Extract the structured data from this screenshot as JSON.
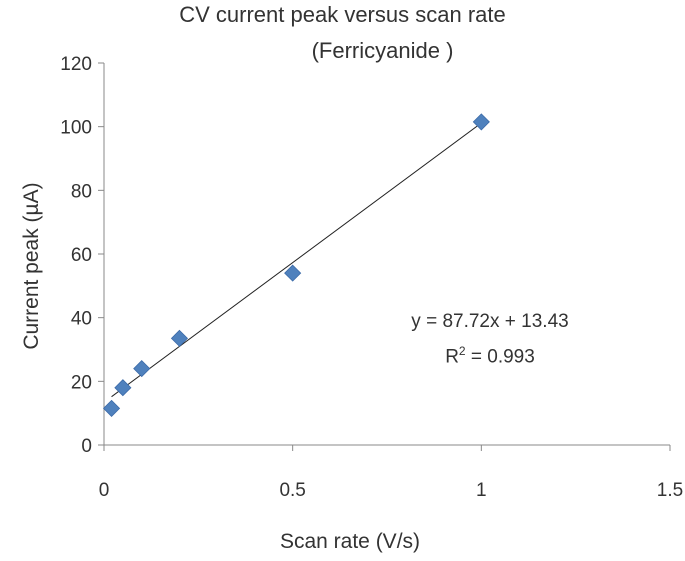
{
  "chart_data": {
    "type": "scatter",
    "title": "CV current peak versus scan rate",
    "subtitle": "(Ferricyanide )",
    "xlabel": "Scan rate (V/s)",
    "ylabel": "Current peak (µA)",
    "xlim": [
      0,
      1.5
    ],
    "ylim": [
      0,
      120
    ],
    "xticks": [
      0,
      0.5,
      1,
      1.5
    ],
    "xtick_labels": [
      "0",
      "0.5",
      "1",
      "1.5"
    ],
    "yticks": [
      0,
      20,
      40,
      60,
      80,
      100,
      120
    ],
    "ytick_labels": [
      "0",
      "20",
      "40",
      "60",
      "80",
      "100",
      "120"
    ],
    "grid": false,
    "legend": "none",
    "marker": "diamond",
    "marker_color": "#4f81bd",
    "points": {
      "x": [
        0.02,
        0.05,
        0.1,
        0.2,
        0.5,
        1.0
      ],
      "y": [
        11.5,
        18.0,
        24.0,
        33.5,
        54.0,
        101.5
      ]
    },
    "trendline": {
      "type": "linear",
      "slope": 87.72,
      "intercept": 13.43,
      "equation_label": "y = 87.72x + 13.43",
      "r2_prefix": "R",
      "r2_sup": "2",
      "r2_suffix": " = 0.993"
    }
  }
}
